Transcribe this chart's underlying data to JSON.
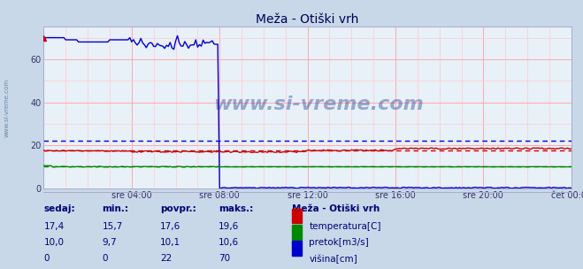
{
  "title": "Meža - Otiški vrh",
  "bg_color": "#c8d8e8",
  "plot_bg_color": "#e8f0f8",
  "grid_color_v": "#ffaaaa",
  "grid_color_h": "#ffaaaa",
  "xlim": [
    0,
    288
  ],
  "ylim": [
    0,
    75
  ],
  "yticks": [
    0,
    20,
    40,
    60
  ],
  "xtick_labels": [
    "sre 04:00",
    "sre 08:00",
    "sre 12:00",
    "sre 16:00",
    "sre 20:00",
    "čet 00:00"
  ],
  "xtick_positions": [
    48,
    96,
    144,
    192,
    240,
    288
  ],
  "watermark": "www.si-vreme.com",
  "sidebar_text": "www.si-vreme.com",
  "temp_color": "#cc0000",
  "flow_color": "#008800",
  "height_color": "#0000cc",
  "temp_avg": 17.6,
  "flow_avg": 10.1,
  "height_avg": 22,
  "legend_title": "Meža - Otiški vrh",
  "table_headers": [
    "sedaj:",
    "min.:",
    "povpr.:",
    "maks.:"
  ],
  "table_data": [
    [
      "17,4",
      "15,7",
      "17,6",
      "19,6"
    ],
    [
      "10,0",
      "9,7",
      "10,1",
      "10,6"
    ],
    [
      "0",
      "0",
      "22",
      "70"
    ]
  ],
  "legend_labels": [
    "temperatura[C]",
    "pretok[m3/s]",
    "višina[cm]"
  ],
  "legend_colors": [
    "#cc0000",
    "#008800",
    "#0000cc"
  ]
}
